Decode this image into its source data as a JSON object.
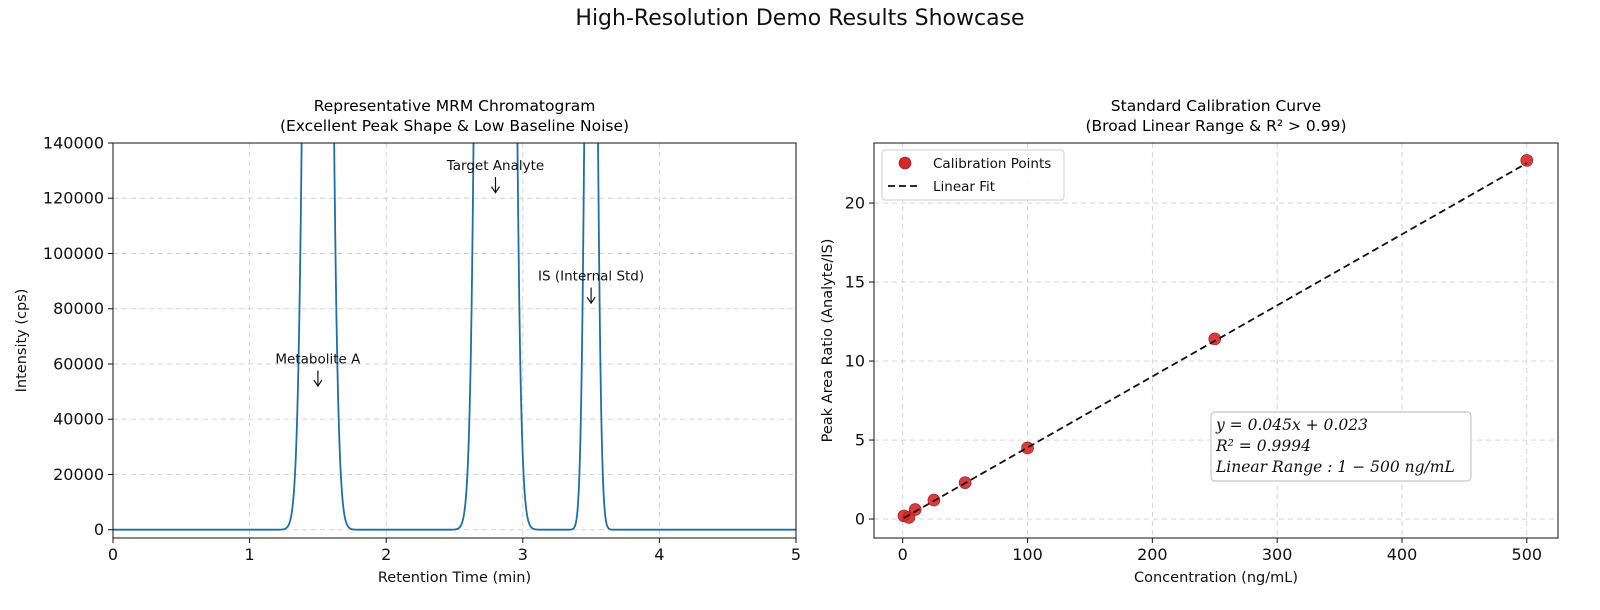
{
  "suptitle": "High-Resolution Demo Results Showcase",
  "chart_data": [
    {
      "type": "line",
      "title": "Representative MRM Chromatogram\n(Excellent Peak Shape & Low Baseline Noise)",
      "xlabel": "Retention Time (min)",
      "ylabel": "Intensity (cps)",
      "xlim": [
        0,
        5
      ],
      "ylim": [
        -3000,
        140000
      ],
      "xticks": [
        0,
        1,
        2,
        3,
        4,
        5
      ],
      "yticks": [
        0,
        20000,
        40000,
        60000,
        80000,
        100000,
        120000,
        140000
      ],
      "grid": true,
      "color": "#1f6fa3",
      "series": [
        {
          "peaks": [
            {
              "center": 1.5,
              "sigma": 0.06,
              "height": 1000000
            },
            {
              "center": 2.8,
              "sigma": 0.065,
              "height": 3000000
            },
            {
              "center": 3.5,
              "sigma": 0.035,
              "height": 400000
            }
          ],
          "baseline": 0
        }
      ],
      "annotations": [
        {
          "text": "Metabolite A",
          "x": 1.5,
          "y": 52000,
          "label_y": 62000
        },
        {
          "text": "Target Analyte",
          "x": 2.8,
          "y": 122000,
          "label_y": 132000
        },
        {
          "text": "IS (Internal Std)",
          "x": 3.5,
          "y": 82000,
          "label_y": 92000
        }
      ]
    },
    {
      "type": "scatter",
      "title": "Standard Calibration Curve\n(Broad Linear Range & R² > 0.99)",
      "xlabel": "Concentration (ng/mL)",
      "ylabel": "Peak Area Ratio (Analyte/IS)",
      "xlim": [
        -23,
        525
      ],
      "ylim": [
        -1.2,
        23.8
      ],
      "xticks": [
        0,
        100,
        200,
        300,
        400,
        500
      ],
      "yticks": [
        0,
        5,
        10,
        15,
        20
      ],
      "grid": true,
      "legend": {
        "position": "upper-left",
        "entries": [
          "Calibration Points",
          "Linear Fit"
        ]
      },
      "series": [
        {
          "name": "Calibration Points",
          "color": "#d62728",
          "x": [
            1,
            5,
            10,
            25,
            50,
            100,
            250,
            500
          ],
          "y": [
            0.2,
            0.1,
            0.6,
            1.2,
            2.3,
            4.5,
            11.4,
            22.7
          ]
        },
        {
          "name": "Linear Fit",
          "color": "#111111",
          "slope": 0.045,
          "intercept": 0.023,
          "x_range": [
            1,
            500
          ]
        }
      ],
      "equation_box": {
        "line1": "y = 0.045x + 0.023",
        "line2": "R² = 0.9994",
        "line3": "Linear Range : 1 − 500 ng/mL"
      }
    }
  ]
}
